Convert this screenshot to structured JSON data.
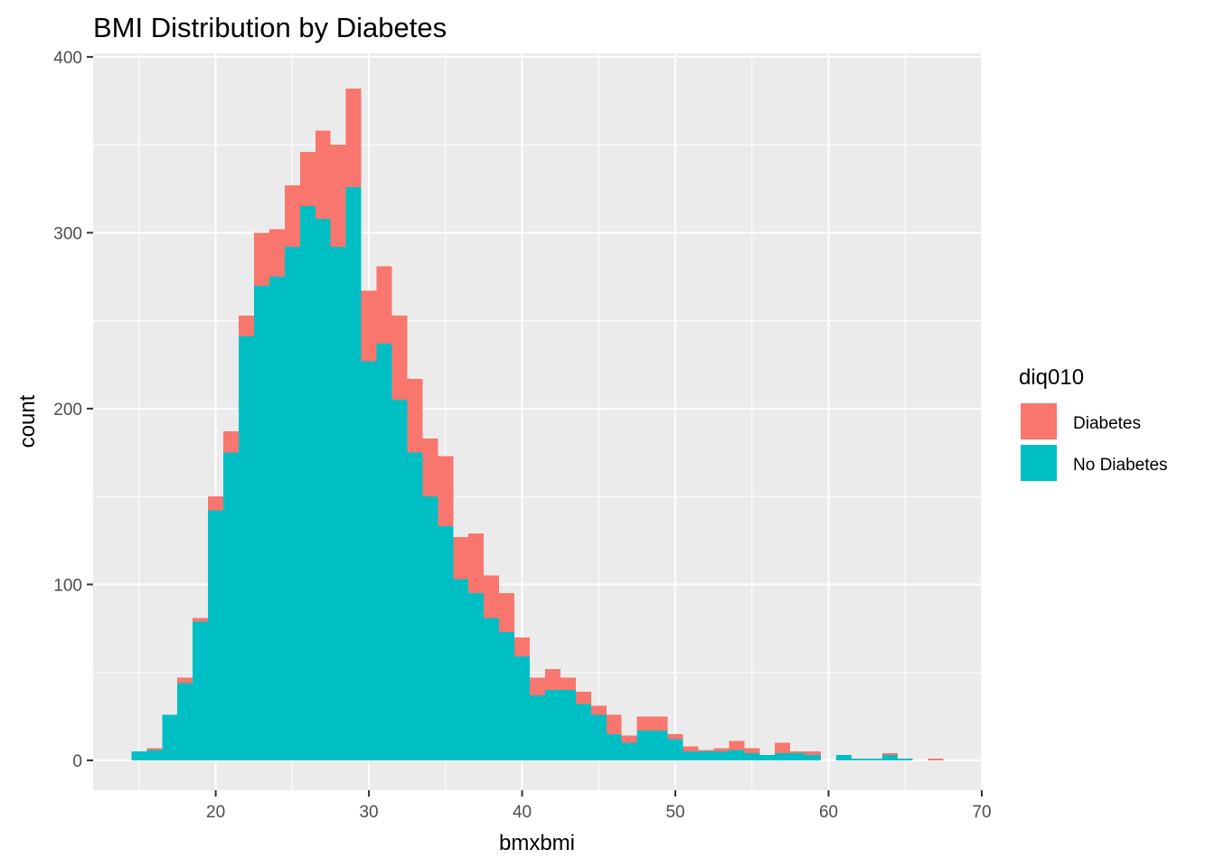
{
  "chart_data": {
    "type": "bar",
    "title": "BMI Distribution by Diabetes",
    "xlabel": "bmxbmi",
    "ylabel": "count",
    "xlim": [
      12,
      70
    ],
    "ylim": [
      -17,
      402
    ],
    "x_ticks": [
      20,
      30,
      40,
      50,
      60,
      70
    ],
    "y_ticks": [
      0,
      100,
      200,
      300,
      400
    ],
    "x_tick_labels": [
      "20",
      "30",
      "40",
      "50",
      "60",
      "70"
    ],
    "y_tick_labels": [
      "0",
      "100",
      "200",
      "300",
      "400"
    ],
    "stacked": true,
    "bin_width": 1,
    "grid": true,
    "legend": {
      "title": "diq010",
      "position": "right",
      "entries": [
        {
          "label": "Diabetes",
          "color": "#F8766D"
        },
        {
          "label": "No Diabetes",
          "color": "#00BFC4"
        }
      ]
    },
    "bin_centers": [
      15,
      16,
      17,
      18,
      19,
      20,
      21,
      22,
      23,
      24,
      25,
      26,
      27,
      28,
      29,
      30,
      31,
      32,
      33,
      34,
      35,
      36,
      37,
      38,
      39,
      40,
      41,
      42,
      43,
      44,
      45,
      46,
      47,
      48,
      49,
      50,
      51,
      52,
      53,
      54,
      55,
      56,
      57,
      58,
      59,
      60,
      61,
      62,
      63,
      64,
      65,
      66,
      67
    ],
    "series": [
      {
        "name": "No Diabetes",
        "color": "#00BFC4",
        "values": [
          5,
          6,
          26,
          44,
          79,
          142,
          175,
          241,
          270,
          275,
          292,
          315,
          308,
          292,
          326,
          227,
          237,
          205,
          175,
          150,
          133,
          103,
          95,
          81,
          73,
          59,
          37,
          40,
          40,
          32,
          26,
          15,
          10,
          17,
          17,
          12,
          5,
          5,
          5,
          6,
          4,
          3,
          4,
          4,
          3,
          0,
          3,
          1,
          1,
          3,
          1,
          0,
          0
        ]
      },
      {
        "name": "Diabetes",
        "color": "#F8766D",
        "values": [
          0,
          1,
          0,
          3,
          2,
          8,
          12,
          12,
          30,
          27,
          35,
          31,
          50,
          58,
          56,
          40,
          44,
          48,
          42,
          33,
          40,
          24,
          34,
          24,
          22,
          11,
          10,
          12,
          7,
          7,
          5,
          11,
          4,
          8,
          8,
          3,
          3,
          1,
          2,
          5,
          3,
          0,
          6,
          1,
          2,
          0,
          0,
          0,
          0,
          1,
          0,
          0,
          1
        ]
      }
    ]
  }
}
